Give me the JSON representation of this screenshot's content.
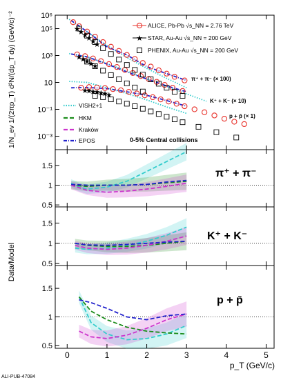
{
  "figure": {
    "watermark": "ALI-PUB-47084",
    "ylabel_top": "1/N_ev 1/(2πp_T) d²N/(dp_T dy) (GeV/c)⁻²",
    "ylabel_ratio": "Data/Model",
    "xlabel": "p_T (GeV/c)",
    "centrality": "0-5% Central collisions",
    "legend_data": [
      {
        "key": "alice",
        "label": "ALICE, Pb-Pb √s_NN = 2.76 TeV",
        "color": "#e8312a"
      },
      {
        "key": "star",
        "label": "STAR, Au-Au √s_NN = 200 GeV",
        "color": "#000000"
      },
      {
        "key": "phenix",
        "label": "PHENIX, Au-Au √s_NN = 200 GeV",
        "color": "#000000"
      }
    ],
    "legend_models": [
      {
        "key": "vish",
        "label": "VISH2+1",
        "color": "#33cccc"
      },
      {
        "key": "hkm",
        "label": "HKM",
        "color": "#1a8c1a"
      },
      {
        "key": "krakow",
        "label": "Kraków",
        "color": "#cc33cc"
      },
      {
        "key": "epos",
        "label": "EPOS",
        "color": "#2222cc"
      }
    ],
    "species_top": [
      "π⁺ + π⁻ (× 100)",
      "K⁺ + K⁻ (× 10)",
      "p + p̄ (× 1)"
    ],
    "ratio_panels": [
      "π⁺ + π⁻",
      "K⁺ + K⁻",
      "p + p̄"
    ]
  },
  "chart_data": [
    {
      "type": "scatter",
      "panel": "spectra",
      "xlabel": "p_T (GeV/c)",
      "ylabel": "1/N_ev 1/(2πp_T) d²N/(dp_T dy) (GeV/c)⁻²",
      "xlim": [
        -0.3,
        5.2
      ],
      "ylim": [
        0.0001,
        1000000
      ],
      "ylog": true,
      "xticks": [
        0,
        1,
        2,
        3,
        4,
        5
      ],
      "yticks": [
        "10⁻³",
        "10⁻¹",
        "10",
        "10³",
        "10⁵",
        "10⁶"
      ],
      "series": [
        {
          "name": "ALICE π (×100)",
          "marker": "circle",
          "color": "#e8312a",
          "x": [
            0.15,
            0.3,
            0.5,
            0.7,
            0.9,
            1.1,
            1.3,
            1.5,
            1.7,
            1.9,
            2.1,
            2.3,
            2.5,
            2.7,
            2.95
          ],
          "y": [
            300000,
            150000,
            60000,
            25000,
            10000,
            4500,
            2200,
            1100,
            550,
            280,
            150,
            80,
            45,
            26,
            14
          ]
        },
        {
          "name": "ALICE K (×10)",
          "marker": "circle",
          "color": "#e8312a",
          "x": [
            0.25,
            0.45,
            0.65,
            0.85,
            1.05,
            1.25,
            1.45,
            1.65,
            1.85,
            2.05,
            2.25,
            2.45,
            2.65,
            2.9
          ],
          "y": [
            1200,
            900,
            600,
            380,
            230,
            140,
            85,
            50,
            30,
            18,
            11,
            6.5,
            4,
            2.3
          ]
        },
        {
          "name": "ALICE p (×1)",
          "marker": "circle",
          "color": "#e8312a",
          "x": [
            0.35,
            0.55,
            0.75,
            0.95,
            1.15,
            1.35,
            1.55,
            1.75,
            1.95,
            2.15,
            2.35,
            2.55,
            2.75,
            2.95,
            3.2,
            3.45,
            3.7,
            3.95,
            4.2,
            4.45
          ],
          "y": [
            4,
            4.5,
            4.2,
            3.8,
            3.2,
            2.6,
            2,
            1.5,
            1.1,
            0.8,
            0.55,
            0.38,
            0.26,
            0.17,
            0.1,
            0.06,
            0.035,
            0.02,
            0.012,
            0.008
          ]
        },
        {
          "name": "STAR π (×100)",
          "marker": "star",
          "color": "#000000",
          "x": [
            0.25,
            0.35,
            0.45,
            0.55,
            0.65,
            0.75
          ],
          "y": [
            100000,
            60000,
            35000,
            20000,
            12000,
            7000
          ]
        },
        {
          "name": "STAR K (×10)",
          "marker": "star",
          "color": "#000000",
          "x": [
            0.3,
            0.4,
            0.5,
            0.6,
            0.7
          ],
          "y": [
            800,
            550,
            380,
            250,
            170
          ]
        },
        {
          "name": "STAR p (×1)",
          "marker": "star",
          "color": "#000000",
          "x": [
            0.45,
            0.55,
            0.65,
            0.75,
            0.85,
            0.95,
            1.05
          ],
          "y": [
            2.5,
            2.4,
            2.2,
            2.0,
            1.7,
            1.5,
            1.2
          ]
        },
        {
          "name": "PHENIX π (×100)",
          "marker": "square",
          "color": "#000000",
          "x": [
            0.3,
            0.5,
            0.7,
            0.9,
            1.1,
            1.3,
            1.5,
            1.7,
            1.9,
            2.1,
            2.3,
            2.5,
            2.7,
            2.9
          ],
          "y": [
            100000,
            30000,
            10000,
            3500,
            1300,
            500,
            200,
            85,
            38,
            17,
            8,
            4,
            2,
            1
          ]
        },
        {
          "name": "PHENIX K (×10)",
          "marker": "square",
          "color": "#000000",
          "x": [
            0.5,
            0.7,
            0.9,
            1.1,
            1.3,
            1.5,
            1.7,
            1.9
          ],
          "y": [
            350,
            160,
            75,
            35,
            17,
            8.5,
            4.2,
            2.1
          ]
        },
        {
          "name": "PHENIX p (×1)",
          "marker": "square",
          "color": "#000000",
          "x": [
            0.7,
            0.9,
            1.1,
            1.3,
            1.5,
            1.7,
            1.9,
            2.1,
            2.3,
            2.5,
            2.7,
            2.9,
            3.3,
            3.75,
            4.25
          ],
          "y": [
            1.0,
            0.8,
            0.55,
            0.38,
            0.26,
            0.17,
            0.11,
            0.07,
            0.045,
            0.028,
            0.018,
            0.011,
            0.005,
            0.002,
            0.0008
          ]
        },
        {
          "name": "VISH2+1 π (×100)",
          "line": "dotted",
          "color": "#33cccc",
          "x": [
            0.05,
            0.5,
            1.0,
            1.5,
            2.0,
            2.5,
            3.0
          ],
          "y": [
            500000,
            60000,
            5500,
            700,
            110,
            20,
            4
          ]
        },
        {
          "name": "VISH2+1 K (×10)",
          "line": "dotted",
          "color": "#33cccc",
          "x": [
            0.05,
            0.5,
            1.0,
            1.5,
            2.0,
            2.5,
            3.0,
            3.5
          ],
          "y": [
            1400,
            800,
            250,
            70,
            18,
            5,
            1.4,
            0.4
          ]
        },
        {
          "name": "VISH2+1 p (×1)",
          "line": "dotted",
          "color": "#33cccc",
          "x": [
            0.05,
            0.5,
            1.0,
            1.5,
            2.0,
            2.5,
            3.0
          ],
          "y": [
            12,
            10,
            4,
            1.5,
            0.5,
            0.15,
            0.05
          ]
        },
        {
          "name": "EPOS π (×100)",
          "line": "dashdot",
          "color": "#2222cc",
          "x": [
            0.1,
            0.5,
            1.0,
            1.5,
            2.0,
            2.5,
            3.0
          ],
          "y": [
            400000,
            60000,
            4500,
            1100,
            150,
            45,
            14
          ]
        },
        {
          "name": "EPOS K (×10)",
          "line": "dashdot",
          "color": "#2222cc",
          "x": [
            0.1,
            0.5,
            1.0,
            1.5,
            2.0,
            2.5,
            3.0
          ],
          "y": [
            1300,
            800,
            230,
            60,
            18,
            5.5,
            2
          ]
        },
        {
          "name": "EPOS p (×1)",
          "line": "dashdot",
          "color": "#2222cc",
          "x": [
            0.1,
            0.5,
            1.0,
            1.5,
            2.0,
            2.5,
            3.0
          ],
          "y": [
            4,
            4.2,
            3.5,
            2.0,
            1.1,
            0.45,
            0.17
          ]
        }
      ]
    },
    {
      "type": "line",
      "panel": "ratio-pion",
      "label": "π⁺ + π⁻",
      "ylabel": "Data/Model",
      "xlim": [
        -0.3,
        5.2
      ],
      "ylim": [
        0.45,
        1.9
      ],
      "yticks": [
        0.5,
        1,
        1.5
      ],
      "series": [
        {
          "name": "VISH2+1",
          "color": "#33cccc",
          "band": true,
          "x": [
            0.1,
            0.3,
            0.5,
            1.0,
            1.5,
            2.0,
            2.5,
            3.0
          ],
          "y": [
            1.05,
            0.95,
            0.9,
            0.95,
            1.1,
            1.35,
            1.6,
            1.85
          ]
        },
        {
          "name": "HKM",
          "color": "#1a8c1a",
          "band": true,
          "x": [
            0.1,
            0.5,
            1.0,
            1.5,
            2.0,
            2.5,
            3.0
          ],
          "y": [
            1.0,
            0.97,
            1.0,
            1.0,
            1.02,
            1.06,
            1.1
          ]
        },
        {
          "name": "Kraków",
          "color": "#cc33cc",
          "band": true,
          "x": [
            0.1,
            0.5,
            1.0,
            1.5,
            2.0,
            2.5,
            3.0
          ],
          "y": [
            1.0,
            0.87,
            0.82,
            0.85,
            0.9,
            0.97,
            1.05
          ]
        },
        {
          "name": "EPOS",
          "color": "#2222cc",
          "band": false,
          "x": [
            0.1,
            0.5,
            1.0,
            1.5,
            2.0,
            2.5,
            3.0
          ],
          "y": [
            1.02,
            1.0,
            1.0,
            1.0,
            1.02,
            1.08,
            1.12
          ]
        }
      ]
    },
    {
      "type": "line",
      "panel": "ratio-kaon",
      "label": "K⁺ + K⁻",
      "ylabel": "Data/Model",
      "xlim": [
        -0.3,
        5.2
      ],
      "ylim": [
        0.45,
        1.9
      ],
      "yticks": [
        0.5,
        1,
        1.5
      ],
      "series": [
        {
          "name": "VISH2+1",
          "color": "#33cccc",
          "band": true,
          "x": [
            0.2,
            0.5,
            1.0,
            1.5,
            2.0,
            2.5,
            3.0
          ],
          "y": [
            0.88,
            0.85,
            0.88,
            0.95,
            1.05,
            1.2,
            1.4
          ]
        },
        {
          "name": "HKM",
          "color": "#1a8c1a",
          "band": true,
          "x": [
            0.2,
            0.5,
            1.0,
            1.5,
            2.0,
            2.5,
            3.0
          ],
          "y": [
            1.0,
            0.95,
            0.92,
            0.92,
            0.95,
            1.0,
            1.05
          ]
        },
        {
          "name": "Kraków",
          "color": "#cc33cc",
          "band": true,
          "x": [
            0.2,
            0.5,
            1.0,
            1.5,
            2.0,
            2.5,
            3.0
          ],
          "y": [
            0.95,
            0.88,
            0.85,
            0.88,
            0.95,
            1.05,
            1.18
          ]
        },
        {
          "name": "EPOS",
          "color": "#2222cc",
          "band": false,
          "x": [
            0.2,
            0.5,
            1.0,
            1.5,
            2.0,
            2.5,
            3.0
          ],
          "y": [
            1.0,
            0.96,
            0.95,
            0.97,
            1.0,
            1.03,
            1.05
          ]
        }
      ]
    },
    {
      "type": "line",
      "panel": "ratio-proton",
      "label": "p + p̄",
      "ylabel": "Data/Model",
      "xlim": [
        -0.3,
        5.2
      ],
      "ylim": [
        0.45,
        1.9
      ],
      "yticks": [
        0.5,
        1,
        1.5
      ],
      "series": [
        {
          "name": "VISH2+1",
          "color": "#33cccc",
          "band": true,
          "x": [
            0.3,
            0.6,
            1.0,
            1.5,
            2.0,
            2.5,
            3.0
          ],
          "y": [
            1.35,
            0.9,
            0.7,
            0.6,
            0.62,
            0.7,
            0.85
          ]
        },
        {
          "name": "HKM",
          "color": "#1a8c1a",
          "band": false,
          "x": [
            0.3,
            0.6,
            1.0,
            1.5,
            2.0,
            2.5,
            3.0
          ],
          "y": [
            1.35,
            1.1,
            0.95,
            0.82,
            0.75,
            0.72,
            0.7
          ]
        },
        {
          "name": "Kraków",
          "color": "#cc33cc",
          "band": true,
          "x": [
            0.3,
            0.6,
            1.0,
            1.5,
            2.0,
            2.5,
            3.0
          ],
          "y": [
            0.75,
            0.65,
            0.62,
            0.68,
            0.8,
            0.95,
            1.05
          ]
        },
        {
          "name": "EPOS",
          "color": "#2222cc",
          "band": false,
          "x": [
            0.3,
            0.6,
            1.0,
            1.5,
            2.0,
            2.5,
            3.0
          ],
          "y": [
            1.3,
            1.25,
            1.15,
            1.0,
            0.95,
            1.02,
            1.05
          ]
        }
      ]
    }
  ]
}
